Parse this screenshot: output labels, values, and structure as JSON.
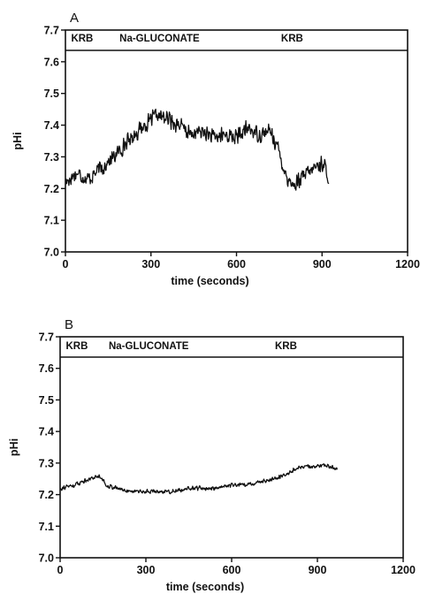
{
  "chart_data": [
    {
      "type": "line",
      "panel_label": "A",
      "title": "",
      "xlabel": "time (seconds)",
      "ylabel": "pHi",
      "xlim": [
        0,
        1200
      ],
      "ylim": [
        7.0,
        7.7
      ],
      "xticks": [
        0,
        300,
        600,
        900,
        1200
      ],
      "yticks": [
        7.0,
        7.1,
        7.2,
        7.3,
        7.4,
        7.5,
        7.6,
        7.7
      ],
      "ytick_labels": [
        "7.0",
        "7.1",
        "7.2",
        "7.3",
        "7.4",
        "7.5",
        "7.6",
        "7.7"
      ],
      "conditions": [
        "KRB",
        "Na-GLUCONATE",
        "KRB"
      ],
      "condition_positions_s": [
        20,
        330,
        795
      ],
      "series": [
        {
          "x": [
            0,
            40,
            80,
            120,
            160,
            200,
            240,
            280,
            320,
            360,
            400,
            440,
            480,
            520,
            560,
            600,
            640,
            680,
            720,
            740,
            760,
            780,
            800,
            840,
            880,
            900,
            920,
            925
          ],
          "y": [
            7.22,
            7.25,
            7.23,
            7.26,
            7.29,
            7.33,
            7.37,
            7.4,
            7.43,
            7.42,
            7.4,
            7.37,
            7.38,
            7.36,
            7.37,
            7.36,
            7.39,
            7.37,
            7.38,
            7.34,
            7.28,
            7.23,
            7.21,
            7.24,
            7.27,
            7.28,
            7.25,
            7.19
          ],
          "noise": 0.03
        }
      ]
    },
    {
      "type": "line",
      "panel_label": "B",
      "title": "",
      "xlabel": "time (seconds)",
      "ylabel": "pHi",
      "xlim": [
        0,
        1200
      ],
      "ylim": [
        7.0,
        7.7
      ],
      "xticks": [
        0,
        300,
        600,
        900,
        1200
      ],
      "yticks": [
        7.0,
        7.1,
        7.2,
        7.3,
        7.4,
        7.5,
        7.6,
        7.7
      ],
      "ytick_labels": [
        "7.0",
        "7.1",
        "7.2",
        "7.3",
        "7.4",
        "7.5",
        "7.6",
        "7.7"
      ],
      "conditions": [
        "KRB",
        "Na-GLUCONATE",
        "KRB"
      ],
      "condition_positions_s": [
        20,
        310,
        790
      ],
      "series": [
        {
          "x": [
            0,
            50,
            100,
            140,
            160,
            200,
            250,
            300,
            350,
            400,
            450,
            500,
            550,
            600,
            650,
            700,
            750,
            800,
            850,
            900,
            950,
            970
          ],
          "y": [
            7.22,
            7.23,
            7.25,
            7.26,
            7.23,
            7.22,
            7.21,
            7.21,
            7.21,
            7.21,
            7.22,
            7.22,
            7.22,
            7.23,
            7.23,
            7.24,
            7.25,
            7.27,
            7.29,
            7.29,
            7.29,
            7.28
          ],
          "noise": 0.008
        }
      ]
    }
  ]
}
